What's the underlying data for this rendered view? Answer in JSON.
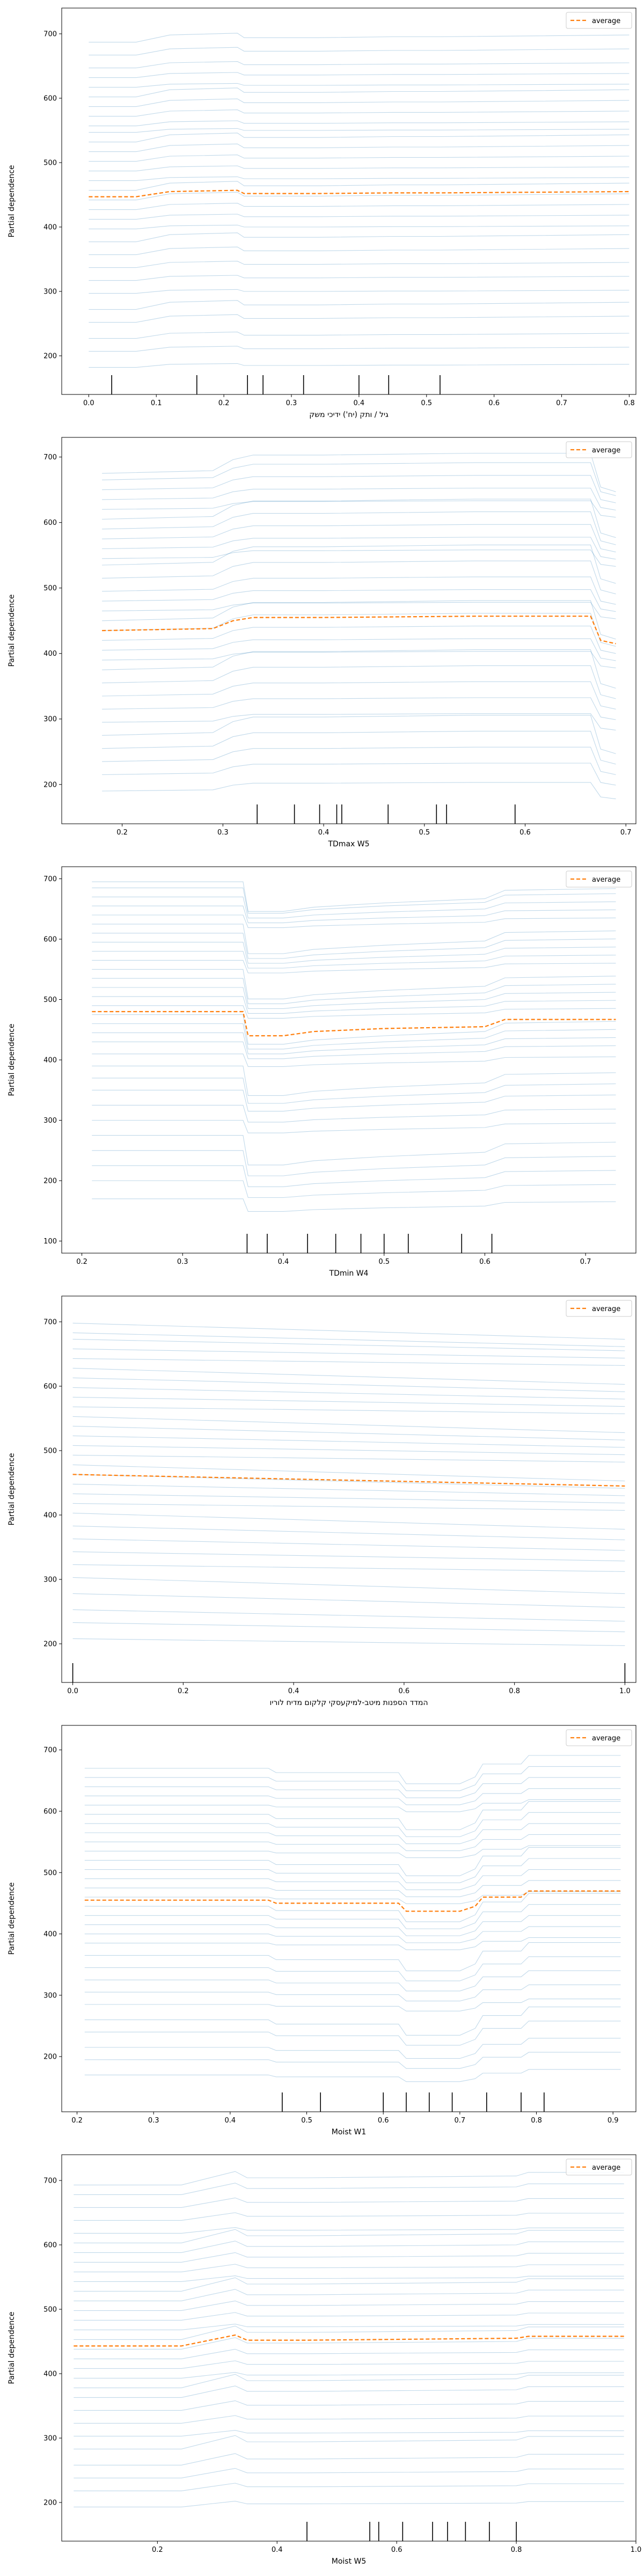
{
  "y_axis_label": "Partial dependence",
  "legend_label": "average",
  "colors": {
    "ice": "#1f77b4",
    "average": "#ff7f0e",
    "axis": "#000000",
    "rug": "#000000"
  },
  "chart_data": [
    {
      "type": "line",
      "title": "",
      "xlabel": "גיל / ותק (יח') ידיכי משק",
      "ylabel": "Partial dependence",
      "xlim": [
        -0.04,
        0.81
      ],
      "ylim": [
        140,
        740
      ],
      "xticks": [
        0.0,
        0.1,
        0.2,
        0.3,
        0.4,
        0.5,
        0.6,
        0.7,
        0.8
      ],
      "xtick_labels": [
        "0.0",
        "0.1",
        "0.2",
        "0.3",
        "0.4",
        "0.5",
        "0.6",
        "0.7",
        "0.8"
      ],
      "yticks": [
        200,
        300,
        400,
        500,
        600,
        700
      ],
      "ytick_labels": [
        "200",
        "300",
        "400",
        "500",
        "600",
        "700"
      ],
      "legend": "top-right",
      "ice_offsets": [
        -265,
        -240,
        -220,
        -195,
        -175,
        -150,
        -130,
        -110,
        -90,
        -70,
        -50,
        -35,
        -20,
        -5,
        10,
        25,
        40,
        55,
        70,
        85,
        100,
        110,
        125,
        140,
        155,
        170,
        185,
        200,
        220,
        240
      ],
      "ice_shape": {
        "x": [
          0.0,
          0.07,
          0.12,
          0.22,
          0.23,
          0.34,
          0.45,
          0.52,
          0.8
        ],
        "dy": [
          0,
          0,
          8,
          10,
          5,
          5,
          6,
          6,
          8
        ]
      },
      "series": [
        {
          "name": "average",
          "x": [
            0.0,
            0.07,
            0.12,
            0.22,
            0.23,
            0.34,
            0.45,
            0.52,
            0.8
          ],
          "y": [
            447,
            447,
            455,
            457,
            452,
            452,
            453,
            453,
            455
          ]
        }
      ],
      "rug": [
        0.034,
        0.16,
        0.235,
        0.258,
        0.318,
        0.4,
        0.444,
        0.52
      ]
    },
    {
      "type": "line",
      "title": "",
      "xlabel": "TDmax W5",
      "ylabel": "Partial dependence",
      "xlim": [
        0.14,
        0.71
      ],
      "ylim": [
        140,
        730
      ],
      "xticks": [
        0.2,
        0.3,
        0.4,
        0.5,
        0.6,
        0.7
      ],
      "xtick_labels": [
        "0.2",
        "0.3",
        "0.4",
        "0.5",
        "0.6",
        "0.7"
      ],
      "yticks": [
        200,
        300,
        400,
        500,
        600,
        700
      ],
      "ytick_labels": [
        "200",
        "300",
        "400",
        "500",
        "600",
        "700"
      ],
      "legend": "top-right",
      "ice_offsets": [
        -245,
        -220,
        -200,
        -180,
        -160,
        -140,
        -120,
        -100,
        -80,
        -60,
        -45,
        -30,
        -15,
        0,
        15,
        30,
        45,
        60,
        80,
        100,
        110,
        125,
        140,
        155,
        170,
        185,
        200,
        215,
        230,
        240
      ],
      "ice_shape": {
        "x": [
          0.18,
          0.29,
          0.31,
          0.33,
          0.4,
          0.55,
          0.665,
          0.675,
          0.69
        ],
        "dy": [
          0,
          3,
          15,
          20,
          20,
          22,
          22,
          -15,
          -20
        ]
      },
      "series": [
        {
          "name": "average",
          "x": [
            0.18,
            0.29,
            0.31,
            0.33,
            0.4,
            0.55,
            0.665,
            0.675,
            0.69
          ],
          "y": [
            435,
            438,
            450,
            455,
            455,
            457,
            457,
            420,
            415
          ]
        }
      ],
      "rug": [
        0.334,
        0.371,
        0.396,
        0.413,
        0.418,
        0.464,
        0.512,
        0.522,
        0.59
      ]
    },
    {
      "type": "line",
      "title": "",
      "xlabel": "TDmin W4",
      "ylabel": "Partial dependence",
      "xlim": [
        0.18,
        0.75
      ],
      "ylim": [
        80,
        720
      ],
      "xticks": [
        0.2,
        0.3,
        0.4,
        0.5,
        0.6,
        0.7
      ],
      "xtick_labels": [
        "0.2",
        "0.3",
        "0.4",
        "0.5",
        "0.6",
        "0.7"
      ],
      "yticks": [
        100,
        200,
        300,
        400,
        500,
        600,
        700
      ],
      "ytick_labels": [
        "100",
        "200",
        "300",
        "400",
        "500",
        "600",
        "700"
      ],
      "legend": "top-right",
      "ice_offsets": [
        -310,
        -280,
        -255,
        -230,
        -205,
        -180,
        -155,
        -130,
        -110,
        -90,
        -70,
        -50,
        -35,
        -20,
        -5,
        10,
        25,
        40,
        55,
        70,
        85,
        100,
        115,
        130,
        145,
        160,
        175,
        190,
        205,
        215
      ],
      "ice_shape": {
        "x": [
          0.21,
          0.36,
          0.365,
          0.4,
          0.43,
          0.5,
          0.6,
          0.62,
          0.73
        ],
        "dy": [
          0,
          0,
          -35,
          -35,
          -30,
          -25,
          -20,
          -10,
          -8
        ]
      },
      "series": [
        {
          "name": "average",
          "x": [
            0.21,
            0.36,
            0.365,
            0.4,
            0.43,
            0.5,
            0.6,
            0.62,
            0.73
          ],
          "y": [
            480,
            480,
            440,
            440,
            447,
            452,
            455,
            467,
            467
          ]
        }
      ],
      "rug": [
        0.364,
        0.384,
        0.424,
        0.452,
        0.477,
        0.5,
        0.524,
        0.577,
        0.607
      ]
    },
    {
      "type": "line",
      "title": "",
      "xlabel": "המדד הספנות מיטב-למיקעסקי קלקום מדיח לוריו",
      "ylabel": "Partial dependence",
      "xlim": [
        -0.02,
        1.02
      ],
      "ylim": [
        140,
        740
      ],
      "xticks": [
        0.0,
        0.2,
        0.4,
        0.6,
        0.8,
        1.0
      ],
      "xtick_labels": [
        "0.0",
        "0.2",
        "0.4",
        "0.6",
        "0.8",
        "1.0"
      ],
      "yticks": [
        200,
        300,
        400,
        500,
        600,
        700
      ],
      "ytick_labels": [
        "200",
        "300",
        "400",
        "500",
        "600",
        "700"
      ],
      "legend": "top-right",
      "ice_offsets": [
        -255,
        -230,
        -210,
        -185,
        -160,
        -140,
        -120,
        -100,
        -80,
        -60,
        -45,
        -30,
        -15,
        0,
        15,
        30,
        45,
        60,
        75,
        90,
        105,
        120,
        135,
        150,
        165,
        180,
        195,
        210,
        220,
        235
      ],
      "ice_shape": {
        "x": [
          0.0,
          1.0
        ],
        "dy": [
          0,
          -18
        ]
      },
      "series": [
        {
          "name": "average",
          "x": [
            0.0,
            1.0
          ],
          "y": [
            463,
            445
          ]
        }
      ],
      "rug": [
        0.0,
        1.0
      ]
    },
    {
      "type": "line",
      "title": "",
      "xlabel": "Moist W1",
      "ylabel": "Partial dependence",
      "xlim": [
        0.18,
        0.93
      ],
      "ylim": [
        110,
        740
      ],
      "xticks": [
        0.2,
        0.3,
        0.4,
        0.5,
        0.6,
        0.7,
        0.8,
        0.9
      ],
      "xtick_labels": [
        "0.2",
        "0.3",
        "0.4",
        "0.5",
        "0.6",
        "0.7",
        "0.8",
        "0.9"
      ],
      "yticks": [
        200,
        300,
        400,
        500,
        600,
        700
      ],
      "ytick_labels": [
        "200",
        "300",
        "400",
        "500",
        "600",
        "700"
      ],
      "legend": "top-right",
      "ice_offsets": [
        -285,
        -260,
        -240,
        -215,
        -195,
        -170,
        -150,
        -130,
        -110,
        -90,
        -70,
        -55,
        -40,
        -25,
        -10,
        5,
        20,
        35,
        50,
        65,
        80,
        95,
        110,
        125,
        140,
        155,
        170,
        185,
        200,
        215
      ],
      "ice_shape": {
        "x": [
          0.21,
          0.45,
          0.46,
          0.62,
          0.63,
          0.7,
          0.72,
          0.73,
          0.78,
          0.79,
          0.91
        ],
        "dy": [
          0,
          0,
          -5,
          -5,
          -18,
          -18,
          -10,
          5,
          5,
          15,
          15
        ]
      },
      "series": [
        {
          "name": "average",
          "x": [
            0.21,
            0.45,
            0.46,
            0.62,
            0.63,
            0.7,
            0.72,
            0.73,
            0.78,
            0.79,
            0.91
          ],
          "y": [
            455,
            455,
            450,
            450,
            437,
            437,
            445,
            460,
            460,
            470,
            470
          ]
        }
      ],
      "rug": [
        0.468,
        0.518,
        0.6,
        0.63,
        0.66,
        0.69,
        0.735,
        0.78,
        0.81
      ]
    },
    {
      "type": "line",
      "title": "",
      "xlabel": "Moist W5",
      "ylabel": "Partial dependence",
      "xlim": [
        0.04,
        1.0
      ],
      "ylim": [
        140,
        740
      ],
      "xticks": [
        0.2,
        0.4,
        0.6,
        0.8,
        1.0
      ],
      "xtick_labels": [
        "0.2",
        "0.4",
        "0.6",
        "0.8",
        "1.0"
      ],
      "yticks": [
        200,
        300,
        400,
        500,
        600,
        700
      ],
      "ytick_labels": [
        "200",
        "300",
        "400",
        "500",
        "600",
        "700"
      ],
      "legend": "top-right",
      "ice_offsets": [
        -250,
        -225,
        -205,
        -185,
        -160,
        -140,
        -120,
        -100,
        -80,
        -65,
        -50,
        -35,
        -20,
        -5,
        10,
        25,
        40,
        55,
        70,
        85,
        100,
        115,
        130,
        145,
        160,
        175,
        195,
        215,
        235,
        250
      ],
      "ice_shape": {
        "x": [
          0.06,
          0.24,
          0.33,
          0.35,
          0.45,
          0.8,
          0.82,
          0.98
        ],
        "dy": [
          0,
          0,
          15,
          8,
          8,
          10,
          14,
          14
        ]
      },
      "series": [
        {
          "name": "average",
          "x": [
            0.06,
            0.24,
            0.33,
            0.35,
            0.45,
            0.8,
            0.82,
            0.98
          ],
          "y": [
            443,
            443,
            460,
            452,
            452,
            455,
            458,
            458
          ]
        }
      ],
      "rug": [
        0.45,
        0.555,
        0.57,
        0.61,
        0.66,
        0.685,
        0.715,
        0.755,
        0.8
      ]
    }
  ]
}
